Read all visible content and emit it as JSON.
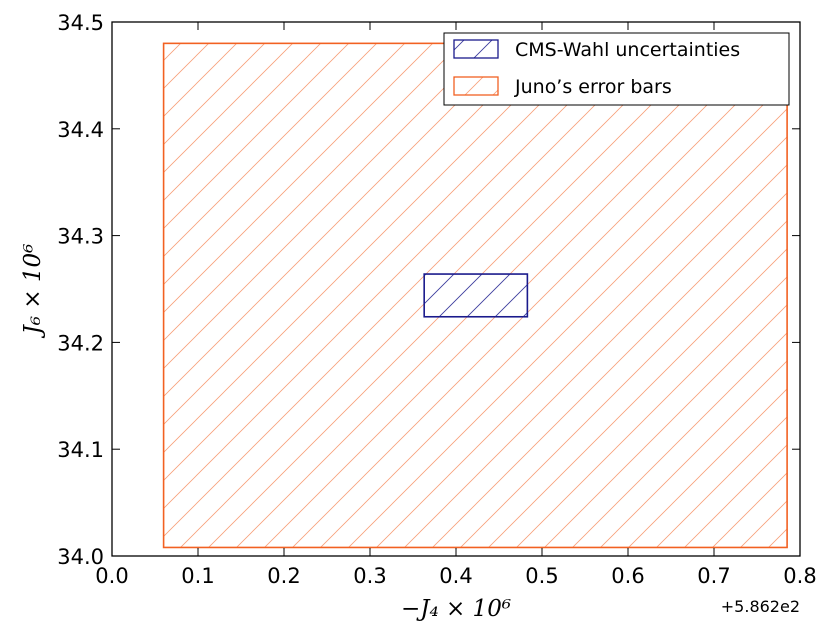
{
  "chart_data": {
    "type": "rect-region",
    "xlabel": "−J₄ × 10⁶",
    "ylabel": "J₆ × 10⁶",
    "x_offset_label": "+5.862e2",
    "xlim": [
      0.0,
      0.8
    ],
    "ylim": [
      34.0,
      34.5
    ],
    "xticks": [
      0.0,
      0.1,
      0.2,
      0.3,
      0.4,
      0.5,
      0.6,
      0.7,
      0.8
    ],
    "yticks": [
      34.0,
      34.1,
      34.2,
      34.3,
      34.4,
      34.5
    ],
    "xtick_labels": [
      "0.0",
      "0.1",
      "0.2",
      "0.3",
      "0.4",
      "0.5",
      "0.6",
      "0.7",
      "0.8"
    ],
    "ytick_labels": [
      "34.0",
      "34.1",
      "34.2",
      "34.3",
      "34.4",
      "34.5"
    ],
    "legend_position": "top-right",
    "grid": false,
    "series": [
      {
        "name": "CMS-Wahl uncertainties",
        "color": "#1a1a8c",
        "hatch": "diagonal",
        "x": [
          0.363,
          0.483
        ],
        "y": [
          34.224,
          34.264
        ]
      },
      {
        "name": "Juno’s error bars",
        "color": "#f26122",
        "hatch": "diagonal",
        "x": [
          0.06,
          0.785
        ],
        "y": [
          34.008,
          34.48
        ]
      }
    ]
  }
}
